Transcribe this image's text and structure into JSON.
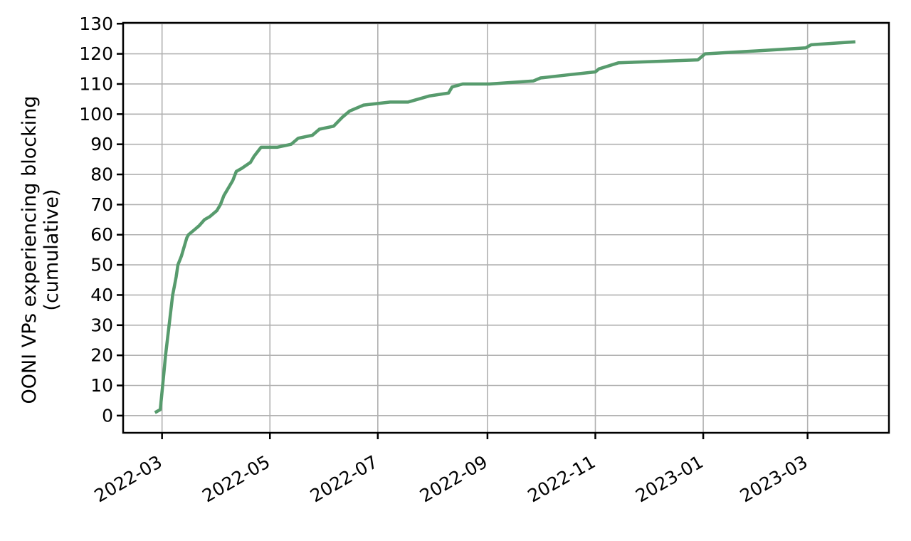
{
  "chart_data": {
    "type": "line",
    "title": "",
    "xlabel": "",
    "ylabel": "OONI VPs experiencing blocking (cumulative)",
    "ylabel_lines": [
      "OONI VPs experiencing blocking",
      "(cumulative)"
    ],
    "grid": true,
    "legend_position": "none",
    "xlim": [
      "2022-02-07",
      "2023-04-16"
    ],
    "ylim": [
      -5.7,
      130.3
    ],
    "y_ticks": [
      0,
      10,
      20,
      30,
      40,
      50,
      60,
      70,
      80,
      90,
      100,
      110,
      120,
      130
    ],
    "x_ticks": [
      {
        "date": "2022-03-01",
        "label": "2022-03"
      },
      {
        "date": "2022-05-01",
        "label": "2022-05"
      },
      {
        "date": "2022-07-01",
        "label": "2022-07"
      },
      {
        "date": "2022-09-01",
        "label": "2022-09"
      },
      {
        "date": "2022-11-01",
        "label": "2022-11"
      },
      {
        "date": "2023-01-01",
        "label": "2023-01"
      },
      {
        "date": "2023-03-01",
        "label": "2023-03"
      }
    ],
    "colors": {
      "line": "#579b6d",
      "grid": "#b0b0b0",
      "spine": "#000000",
      "tick_label": "#000000",
      "background": "#ffffff"
    },
    "series": [
      {
        "name": "OONI VPs experiencing blocking (cumulative)",
        "points": [
          [
            "2022-02-25",
            1
          ],
          [
            "2022-02-28",
            2
          ],
          [
            "2022-03-01",
            8
          ],
          [
            "2022-03-02",
            14
          ],
          [
            "2022-03-03",
            20
          ],
          [
            "2022-03-04",
            25
          ],
          [
            "2022-03-05",
            30
          ],
          [
            "2022-03-06",
            35
          ],
          [
            "2022-03-07",
            40
          ],
          [
            "2022-03-08",
            43
          ],
          [
            "2022-03-09",
            46
          ],
          [
            "2022-03-10",
            50
          ],
          [
            "2022-03-12",
            53
          ],
          [
            "2022-03-13",
            55
          ],
          [
            "2022-03-14",
            57
          ],
          [
            "2022-03-15",
            59
          ],
          [
            "2022-03-16",
            60
          ],
          [
            "2022-03-20",
            62
          ],
          [
            "2022-03-22",
            63
          ],
          [
            "2022-03-25",
            65
          ],
          [
            "2022-03-28",
            66
          ],
          [
            "2022-04-01",
            68
          ],
          [
            "2022-04-03",
            70
          ],
          [
            "2022-04-05",
            73
          ],
          [
            "2022-04-08",
            76
          ],
          [
            "2022-04-10",
            78
          ],
          [
            "2022-04-12",
            81
          ],
          [
            "2022-04-15",
            82
          ],
          [
            "2022-04-20",
            84
          ],
          [
            "2022-04-22",
            86
          ],
          [
            "2022-04-26",
            89
          ],
          [
            "2022-05-05",
            89
          ],
          [
            "2022-05-13",
            90
          ],
          [
            "2022-05-17",
            92
          ],
          [
            "2022-05-25",
            93
          ],
          [
            "2022-05-29",
            95
          ],
          [
            "2022-06-06",
            96
          ],
          [
            "2022-06-11",
            99
          ],
          [
            "2022-06-15",
            101
          ],
          [
            "2022-06-23",
            103
          ],
          [
            "2022-07-08",
            104
          ],
          [
            "2022-07-18",
            104
          ],
          [
            "2022-07-30",
            106
          ],
          [
            "2022-08-10",
            107
          ],
          [
            "2022-08-12",
            109
          ],
          [
            "2022-08-18",
            110
          ],
          [
            "2022-09-02",
            110
          ],
          [
            "2022-09-27",
            111
          ],
          [
            "2022-10-01",
            112
          ],
          [
            "2022-10-16",
            113
          ],
          [
            "2022-11-01",
            114
          ],
          [
            "2022-11-03",
            115
          ],
          [
            "2022-11-14",
            117
          ],
          [
            "2022-12-29",
            118
          ],
          [
            "2023-01-02",
            120
          ],
          [
            "2023-02-01",
            121
          ],
          [
            "2023-02-28",
            122
          ],
          [
            "2023-03-03",
            123
          ],
          [
            "2023-03-28",
            124
          ]
        ]
      }
    ]
  }
}
